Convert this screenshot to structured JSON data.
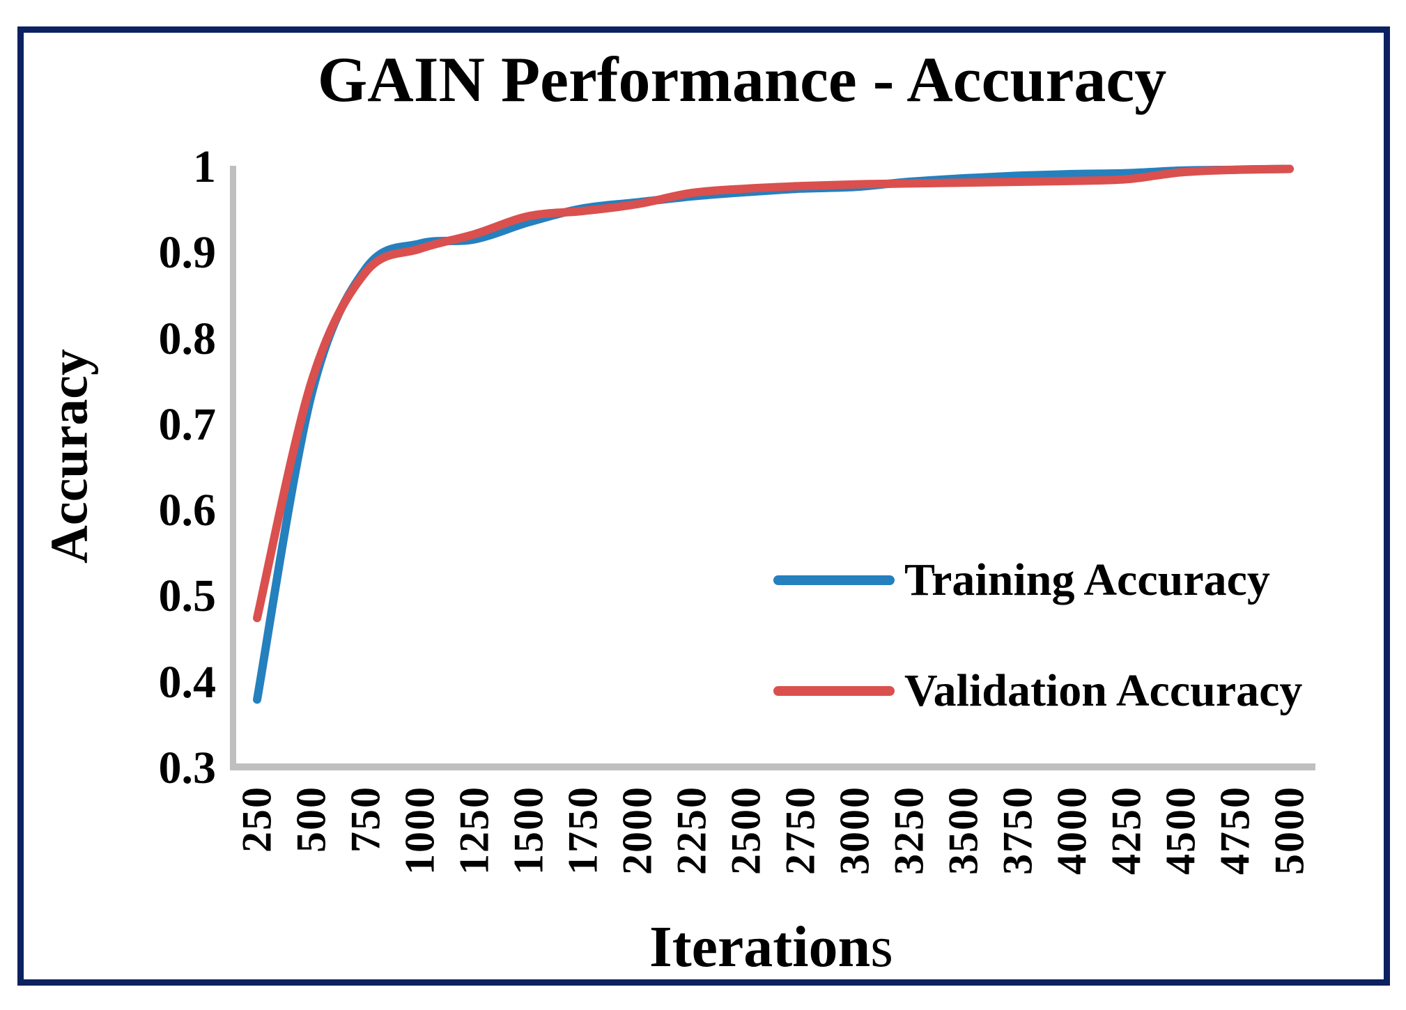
{
  "window": {
    "background": "#FFFFFF",
    "frame_color": "#0B2161"
  },
  "chart_data": {
    "type": "line",
    "title": "GAIN Performance - Accuracy",
    "xlabel_main": "Iteration",
    "xlabel_suffix": "s",
    "ylabel": "Accuracy",
    "x": [
      250,
      500,
      750,
      1000,
      1250,
      1500,
      1750,
      2000,
      2250,
      2500,
      2750,
      3000,
      3250,
      3500,
      3750,
      4000,
      4250,
      4500,
      4750,
      5000
    ],
    "series": [
      {
        "name": "Training Accuracy",
        "color": "#2580BE",
        "values": [
          0.38,
          0.735,
          0.882,
          0.911,
          0.916,
          0.936,
          0.952,
          0.959,
          0.966,
          0.971,
          0.975,
          0.977,
          0.983,
          0.987,
          0.99,
          0.992,
          0.993,
          0.996,
          0.997,
          0.998
        ]
      },
      {
        "name": "Validation Accuracy",
        "color": "#DA504E",
        "values": [
          0.475,
          0.75,
          0.878,
          0.905,
          0.922,
          0.943,
          0.949,
          0.957,
          0.97,
          0.975,
          0.978,
          0.98,
          0.981,
          0.982,
          0.983,
          0.984,
          0.986,
          0.994,
          0.997,
          0.998
        ]
      }
    ],
    "ylim": [
      0.3,
      1.0
    ],
    "ytick_labels": [
      "1",
      "0.9",
      "0.8",
      "0.7",
      "0.6",
      "0.5",
      "0.4",
      "0.3"
    ],
    "ytick_values": [
      1.0,
      0.9,
      0.8,
      0.7,
      0.6,
      0.5,
      0.4,
      0.3
    ],
    "xtick_labels": [
      "250",
      "500",
      "750",
      "1000",
      "1250",
      "1500",
      "1750",
      "2000",
      "2250",
      "2500",
      "2750",
      "3000",
      "3250",
      "3500",
      "3750",
      "4000",
      "4250",
      "4500",
      "4750",
      "5000"
    ],
    "axis_color": "#BFBFBF",
    "grid": false,
    "legend_position": "middle-right",
    "line_width": 12
  },
  "legend": {
    "items": [
      {
        "label": "Training Accuracy",
        "color": "#2580BE"
      },
      {
        "label": "Validation Accuracy",
        "color": "#DA504E"
      }
    ]
  }
}
